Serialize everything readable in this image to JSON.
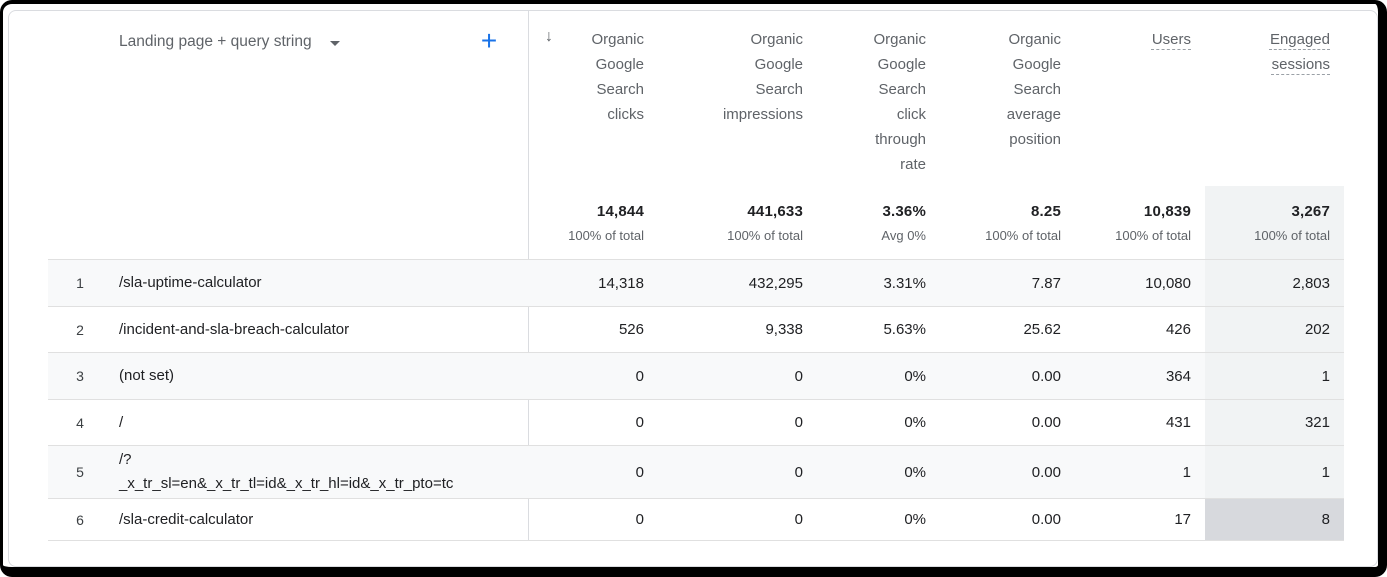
{
  "colors": {
    "accent_blue": "#1a73e8",
    "row_band": "#f8f9fa",
    "column_highlight": "#f1f3f4",
    "highlighted_cell": "#d7d9dd",
    "text_primary": "#202124",
    "text_secondary": "#5f6368"
  },
  "toolbar": {
    "dimension_selector": {
      "label": "Landing page + query string"
    },
    "add_button_label": "+"
  },
  "table": {
    "sort_icon": "↓",
    "columns": [
      {
        "label": "Organic\nGoogle\nSearch\nclicks",
        "sorted": "descending"
      },
      {
        "label": "Organic\nGoogle\nSearch\nimpressions"
      },
      {
        "label": "Organic\nGoogle\nSearch\nclick\nthrough\nrate"
      },
      {
        "label": "Organic\nGoogle\nSearch\naverage\nposition"
      },
      {
        "label": "Users"
      },
      {
        "label": "Engaged\nsessions"
      }
    ],
    "totals": {
      "values": [
        "14,844",
        "441,633",
        "3.36%",
        "8.25",
        "10,839",
        "3,267"
      ],
      "subtexts": [
        "100% of total",
        "100% of total",
        "Avg 0%",
        "100% of total",
        "100% of total",
        "100% of total"
      ]
    },
    "rows": [
      {
        "index": "1",
        "label": "/sla-uptime-calculator",
        "values": [
          "14,318",
          "432,295",
          "3.31%",
          "7.87",
          "10,080",
          "2,803"
        ]
      },
      {
        "index": "2",
        "label": "/incident-and-sla-breach-calculator",
        "values": [
          "526",
          "9,338",
          "5.63%",
          "25.62",
          "426",
          "202"
        ]
      },
      {
        "index": "3",
        "label": "(not set)",
        "values": [
          "0",
          "0",
          "0%",
          "0.00",
          "364",
          "1"
        ]
      },
      {
        "index": "4",
        "label": "/",
        "values": [
          "0",
          "0",
          "0%",
          "0.00",
          "431",
          "321"
        ]
      },
      {
        "index": "5",
        "label": "/?\n_x_tr_sl=en&_x_tr_tl=id&_x_tr_hl=id&_x_tr_pto=tc",
        "values": [
          "0",
          "0",
          "0%",
          "0.00",
          "1",
          "1"
        ]
      },
      {
        "index": "6",
        "label": "/sla-credit-calculator",
        "values": [
          "0",
          "0",
          "0%",
          "0.00",
          "17",
          "8"
        ]
      }
    ]
  }
}
